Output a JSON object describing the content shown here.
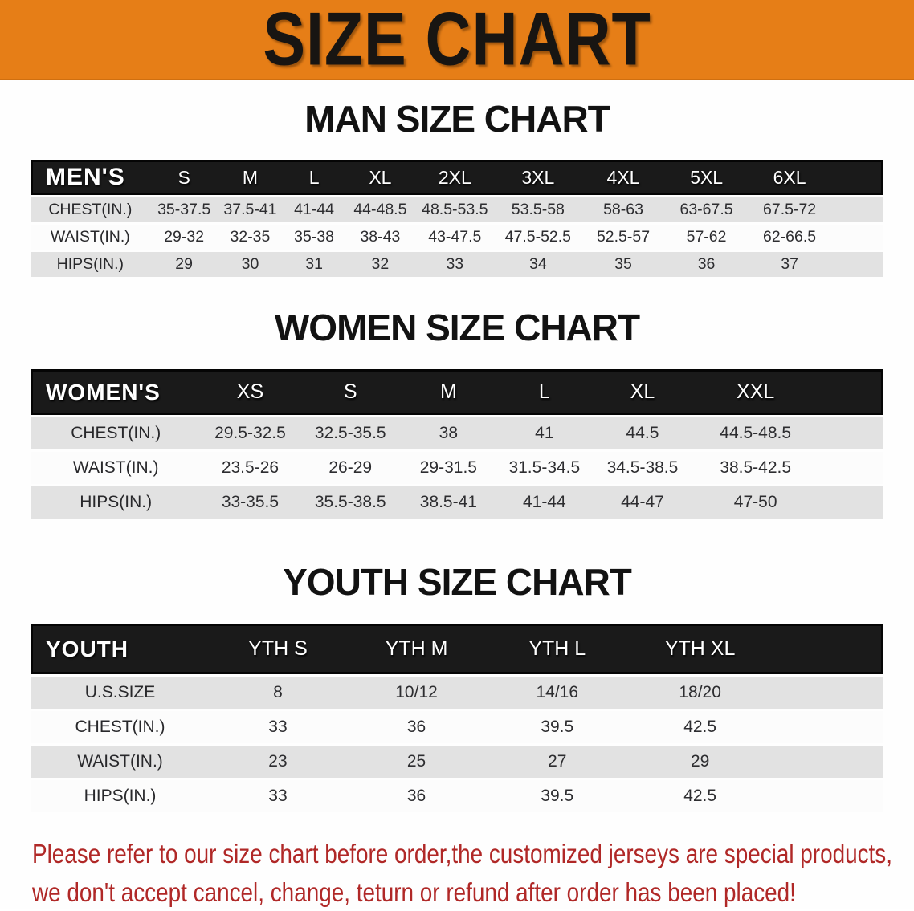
{
  "banner": {
    "title": "SIZE CHART"
  },
  "colors": {
    "banner_bg": "#E67E17",
    "table_header_bg": "#1A1A1A",
    "row_gray": "#E2E2E2",
    "row_white": "#FCFCFC",
    "notice_red": "#B02827"
  },
  "sections": [
    {
      "name": "men",
      "heading": "MAN SIZE CHART",
      "label": "MEN'S",
      "columns": [
        "S",
        "M",
        "L",
        "XL",
        "2XL",
        "3XL",
        "4XL",
        "5XL",
        "6XL"
      ],
      "rows": [
        {
          "label": "CHEST(IN.)",
          "values": [
            "35-37.5",
            "37.5-41",
            "41-44",
            "44-48.5",
            "48.5-53.5",
            "53.5-58",
            "58-63",
            "63-67.5",
            "67.5-72"
          ]
        },
        {
          "label": "WAIST(IN.)",
          "values": [
            "29-32",
            "32-35",
            "35-38",
            "38-43",
            "43-47.5",
            "47.5-52.5",
            "52.5-57",
            "57-62",
            "62-66.5"
          ]
        },
        {
          "label": "HIPS(IN.)",
          "values": [
            "29",
            "30",
            "31",
            "32",
            "33",
            "34",
            "35",
            "36",
            "37"
          ]
        }
      ]
    },
    {
      "name": "women",
      "heading": "WOMEN SIZE CHART",
      "label": "WOMEN'S",
      "columns": [
        "XS",
        "S",
        "M",
        "L",
        "XL",
        "XXL"
      ],
      "rows": [
        {
          "label": "CHEST(IN.)",
          "values": [
            "29.5-32.5",
            "32.5-35.5",
            "38",
            "41",
            "44.5",
            "44.5-48.5"
          ]
        },
        {
          "label": "WAIST(IN.)",
          "values": [
            "23.5-26",
            "26-29",
            "29-31.5",
            "31.5-34.5",
            "34.5-38.5",
            "38.5-42.5"
          ]
        },
        {
          "label": "HIPS(IN.)",
          "values": [
            "33-35.5",
            "35.5-38.5",
            "38.5-41",
            "41-44",
            "44-47",
            "47-50"
          ]
        }
      ]
    },
    {
      "name": "youth",
      "heading": "YOUTH SIZE CHART",
      "label": "YOUTH",
      "columns": [
        "YTH S",
        "YTH M",
        "YTH L",
        "YTH XL"
      ],
      "rows": [
        {
          "label": "U.S.SIZE",
          "values": [
            "8",
            "10/12",
            "14/16",
            "18/20"
          ]
        },
        {
          "label": "CHEST(IN.)",
          "values": [
            "33",
            "36",
            "39.5",
            "42.5"
          ]
        },
        {
          "label": "WAIST(IN.)",
          "values": [
            "23",
            "25",
            "27",
            "29"
          ]
        },
        {
          "label": "HIPS(IN.)",
          "values": [
            "33",
            "36",
            "39.5",
            "42.5"
          ]
        }
      ]
    }
  ],
  "footer": {
    "line1": "Please refer to our size chart before order,the customized jerseys are special products,",
    "line2": "we don't accept cancel, change, teturn or refund after order has been placed!"
  }
}
